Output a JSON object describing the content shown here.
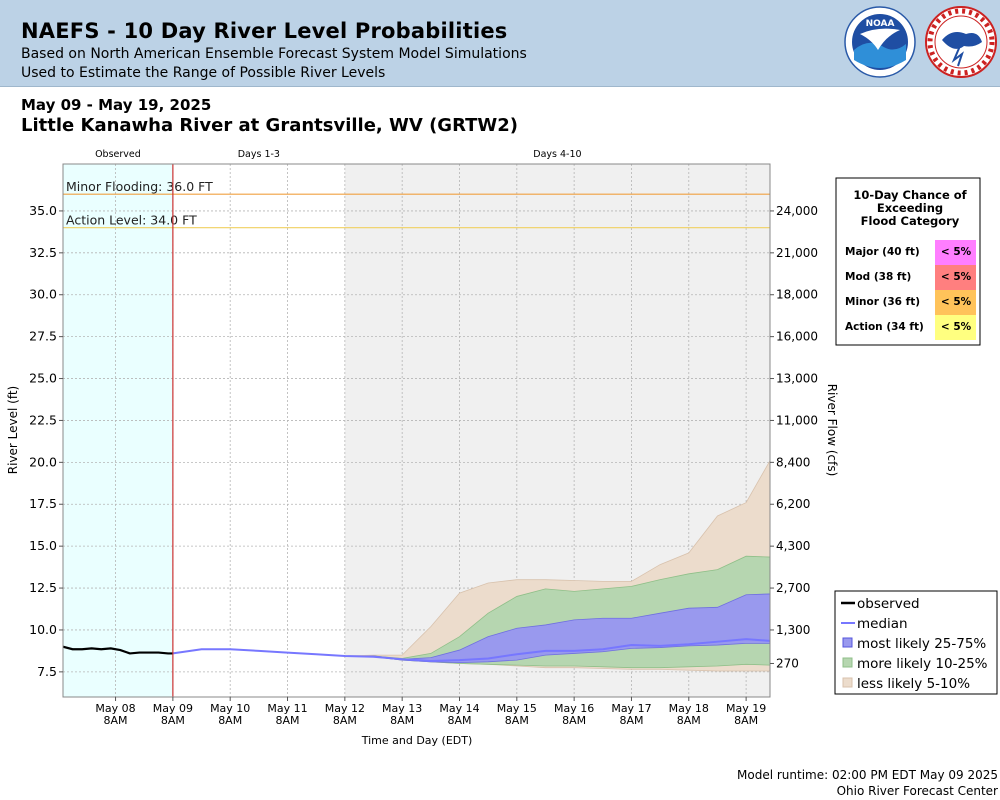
{
  "header": {
    "title": "NAEFS - 10 Day River Level Probabilities",
    "subtitle1": "Based on North American Ensemble Forecast System Model Simulations",
    "subtitle2": "Used to Estimate the Range of Possible River Levels",
    "logos": [
      "noaa-logo",
      "nws-logo"
    ]
  },
  "date_range": "May 09 - May 19, 2025",
  "station": "Little Kanawha River at Grantsville, WV (GRTW2)",
  "footer": {
    "runtime": "Model runtime: 02:00 PM EDT May 09 2025",
    "center": "Ohio River Forecast Center"
  },
  "colors": {
    "observed": "#000000",
    "median": "#7777ff",
    "band_25_75": "#9999ee",
    "band_10_25": "#b6d6b0",
    "band_5_10": "#ecdccc",
    "observed_bg": "#eaffff",
    "days4_10_bg": "#f0f0f0",
    "minor_line": "#f0a040",
    "action_line": "#f0d060",
    "forecast_start_line": "#cc3333",
    "major": "#ff7eff",
    "mod": "#ff7f7f",
    "minor": "#ffc35a",
    "action": "#ffff80"
  },
  "chance_table": {
    "title_lines": [
      "10-Day Chance of",
      "Exceeding",
      "Flood Category"
    ],
    "rows": [
      {
        "label": "Major (40 ft)",
        "value": "< 5%",
        "color": "#ff7eff"
      },
      {
        "label": "Mod (38 ft)",
        "value": "< 5%",
        "color": "#ff7f7f"
      },
      {
        "label": "Minor (36 ft)",
        "value": "< 5%",
        "color": "#ffc35a"
      },
      {
        "label": "Action (34 ft)",
        "value": "< 5%",
        "color": "#ffff80"
      }
    ]
  },
  "chart_data": {
    "type": "area",
    "xlabel": "Time and Day (EDT)",
    "ylabel": "River Level (ft)",
    "y2label": "River Flow (cfs)",
    "ylim": [
      6.0,
      37.8
    ],
    "xlim": [
      "2025-05-07T10:00",
      "2025-05-19T18:00"
    ],
    "period_labels": [
      {
        "text": "Observed",
        "start": "2025-05-07T10:00",
        "end": "2025-05-09T08:00"
      },
      {
        "text": "Days 1-3",
        "start": "2025-05-09T08:00",
        "end": "2025-05-12T08:00"
      },
      {
        "text": "Days 4-10",
        "start": "2025-05-12T08:00",
        "end": "2025-05-19T18:00"
      }
    ],
    "forecast_start": "2025-05-09T08:00",
    "days4_10_start": "2025-05-12T08:00",
    "y_ticks": [
      7.5,
      10.0,
      12.5,
      15.0,
      17.5,
      20.0,
      22.5,
      25.0,
      27.5,
      30.0,
      32.5,
      35.0
    ],
    "y_tick_labels": [
      "7.5",
      "10.0",
      "12.5",
      "15.0",
      "17.5",
      "20.0",
      "22.5",
      "25.0",
      "27.5",
      "30.0",
      "32.5",
      "35.0"
    ],
    "y2_ticks": [
      {
        "stage": 8.0,
        "label": "270"
      },
      {
        "stage": 10.0,
        "label": "1,300"
      },
      {
        "stage": 12.5,
        "label": "2,700"
      },
      {
        "stage": 15.0,
        "label": "4,300"
      },
      {
        "stage": 17.5,
        "label": "6,200"
      },
      {
        "stage": 20.0,
        "label": "8,400"
      },
      {
        "stage": 22.5,
        "label": "11,000"
      },
      {
        "stage": 25.0,
        "label": "13,000"
      },
      {
        "stage": 27.5,
        "label": "16,000"
      },
      {
        "stage": 30.0,
        "label": "18,000"
      },
      {
        "stage": 32.5,
        "label": "21,000"
      },
      {
        "stage": 35.0,
        "label": "24,000"
      }
    ],
    "x_ticks": [
      {
        "t": "2025-05-08T08:00",
        "line1": "May 08",
        "line2": "8AM"
      },
      {
        "t": "2025-05-09T08:00",
        "line1": "May 09",
        "line2": "8AM"
      },
      {
        "t": "2025-05-10T08:00",
        "line1": "May 10",
        "line2": "8AM"
      },
      {
        "t": "2025-05-11T08:00",
        "line1": "May 11",
        "line2": "8AM"
      },
      {
        "t": "2025-05-12T08:00",
        "line1": "May 12",
        "line2": "8AM"
      },
      {
        "t": "2025-05-13T08:00",
        "line1": "May 13",
        "line2": "8AM"
      },
      {
        "t": "2025-05-14T08:00",
        "line1": "May 14",
        "line2": "8AM"
      },
      {
        "t": "2025-05-15T08:00",
        "line1": "May 15",
        "line2": "8AM"
      },
      {
        "t": "2025-05-16T08:00",
        "line1": "May 16",
        "line2": "8AM"
      },
      {
        "t": "2025-05-17T08:00",
        "line1": "May 17",
        "line2": "8AM"
      },
      {
        "t": "2025-05-18T08:00",
        "line1": "May 18",
        "line2": "8AM"
      },
      {
        "t": "2025-05-19T08:00",
        "line1": "May 19",
        "line2": "8AM"
      }
    ],
    "thresholds": [
      {
        "label": "Minor Flooding: 36.0 FT",
        "value": 36.0,
        "color": "#f0a040"
      },
      {
        "label": "Action Level: 34.0 FT",
        "value": 34.0,
        "color": "#f0d060"
      }
    ],
    "observed": {
      "t": [
        "2025-05-07T10:00",
        "2025-05-07T14:00",
        "2025-05-07T18:00",
        "2025-05-07T22:00",
        "2025-05-08T02:00",
        "2025-05-08T06:00",
        "2025-05-08T10:00",
        "2025-05-08T14:00",
        "2025-05-08T18:00",
        "2025-05-08T22:00",
        "2025-05-09T02:00",
        "2025-05-09T06:00",
        "2025-05-09T08:00"
      ],
      "v": [
        9.0,
        8.85,
        8.85,
        8.9,
        8.85,
        8.9,
        8.8,
        8.6,
        8.65,
        8.65,
        8.65,
        8.6,
        8.6
      ]
    },
    "forecast": {
      "t": [
        "2025-05-09T08:00",
        "2025-05-09T20:00",
        "2025-05-10T08:00",
        "2025-05-10T20:00",
        "2025-05-11T08:00",
        "2025-05-11T20:00",
        "2025-05-12T08:00",
        "2025-05-12T20:00",
        "2025-05-13T08:00",
        "2025-05-13T20:00",
        "2025-05-14T08:00",
        "2025-05-14T20:00",
        "2025-05-15T08:00",
        "2025-05-15T20:00",
        "2025-05-16T08:00",
        "2025-05-16T20:00",
        "2025-05-17T08:00",
        "2025-05-17T20:00",
        "2025-05-18T08:00",
        "2025-05-18T20:00",
        "2025-05-19T08:00",
        "2025-05-19T18:00"
      ],
      "median": [
        8.6,
        8.85,
        8.85,
        8.75,
        8.65,
        8.55,
        8.45,
        8.4,
        8.25,
        8.15,
        8.2,
        8.3,
        8.55,
        8.75,
        8.75,
        8.85,
        9.1,
        9.05,
        9.15,
        9.3,
        9.45,
        9.35
      ],
      "p25": [
        8.6,
        8.85,
        8.85,
        8.75,
        8.65,
        8.55,
        8.45,
        8.4,
        8.2,
        8.1,
        8.05,
        8.1,
        8.2,
        8.5,
        8.6,
        8.7,
        8.9,
        8.95,
        9.05,
        9.1,
        9.2,
        9.2
      ],
      "p75": [
        8.6,
        8.85,
        8.85,
        8.75,
        8.65,
        8.55,
        8.45,
        8.45,
        8.25,
        8.35,
        8.8,
        9.6,
        10.1,
        10.3,
        10.6,
        10.7,
        10.7,
        11.0,
        11.3,
        11.35,
        12.1,
        12.15
      ],
      "p10": [
        8.6,
        8.85,
        8.85,
        8.75,
        8.65,
        8.55,
        8.45,
        8.4,
        8.2,
        8.1,
        8.0,
        7.95,
        7.9,
        7.85,
        7.85,
        7.8,
        7.75,
        7.75,
        7.8,
        7.85,
        7.95,
        7.9
      ],
      "p90": [
        8.6,
        8.85,
        8.85,
        8.75,
        8.65,
        8.55,
        8.45,
        8.45,
        8.3,
        8.6,
        9.6,
        11.0,
        12.0,
        12.45,
        12.3,
        12.45,
        12.6,
        13.0,
        13.35,
        13.6,
        14.4,
        14.35
      ],
      "p05": [
        8.6,
        8.85,
        8.85,
        8.75,
        8.65,
        8.55,
        8.45,
        8.4,
        8.2,
        8.1,
        8.0,
        7.95,
        7.85,
        7.75,
        7.75,
        7.7,
        7.65,
        7.65,
        7.6,
        7.55,
        7.55,
        7.55
      ],
      "p95": [
        8.6,
        8.85,
        8.85,
        8.75,
        8.65,
        8.55,
        8.45,
        8.5,
        8.5,
        10.2,
        12.2,
        12.8,
        13.0,
        13.0,
        12.95,
        12.9,
        12.9,
        13.9,
        14.6,
        16.8,
        17.6,
        20.1
      ]
    },
    "legend": [
      "observed",
      "median",
      "most likely 25-75%",
      "more likely 10-25%",
      "less likely 5-10%"
    ]
  }
}
